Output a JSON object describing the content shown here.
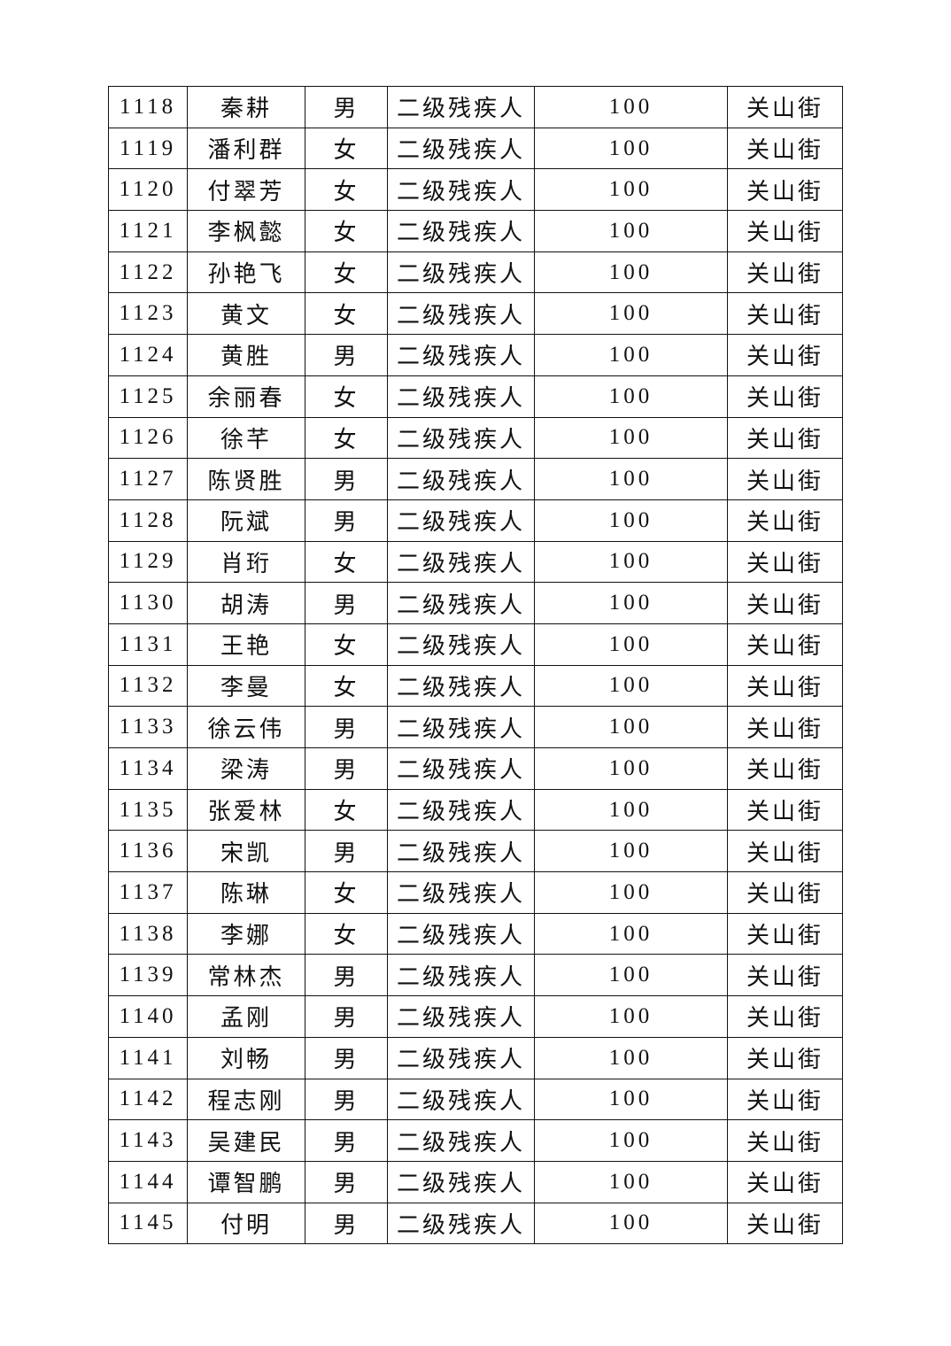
{
  "table": {
    "rows": [
      [
        "1118",
        "秦耕",
        "男",
        "二级残疾人",
        "100",
        "关山街"
      ],
      [
        "1119",
        "潘利群",
        "女",
        "二级残疾人",
        "100",
        "关山街"
      ],
      [
        "1120",
        "付翠芳",
        "女",
        "二级残疾人",
        "100",
        "关山街"
      ],
      [
        "1121",
        "李枫懿",
        "女",
        "二级残疾人",
        "100",
        "关山街"
      ],
      [
        "1122",
        "孙艳飞",
        "女",
        "二级残疾人",
        "100",
        "关山街"
      ],
      [
        "1123",
        "黄文",
        "女",
        "二级残疾人",
        "100",
        "关山街"
      ],
      [
        "1124",
        "黄胜",
        "男",
        "二级残疾人",
        "100",
        "关山街"
      ],
      [
        "1125",
        "余丽春",
        "女",
        "二级残疾人",
        "100",
        "关山街"
      ],
      [
        "1126",
        "徐芊",
        "女",
        "二级残疾人",
        "100",
        "关山街"
      ],
      [
        "1127",
        "陈贤胜",
        "男",
        "二级残疾人",
        "100",
        "关山街"
      ],
      [
        "1128",
        "阮斌",
        "男",
        "二级残疾人",
        "100",
        "关山街"
      ],
      [
        "1129",
        "肖珩",
        "女",
        "二级残疾人",
        "100",
        "关山街"
      ],
      [
        "1130",
        "胡涛",
        "男",
        "二级残疾人",
        "100",
        "关山街"
      ],
      [
        "1131",
        "王艳",
        "女",
        "二级残疾人",
        "100",
        "关山街"
      ],
      [
        "1132",
        "李曼",
        "女",
        "二级残疾人",
        "100",
        "关山街"
      ],
      [
        "1133",
        "徐云伟",
        "男",
        "二级残疾人",
        "100",
        "关山街"
      ],
      [
        "1134",
        "梁涛",
        "男",
        "二级残疾人",
        "100",
        "关山街"
      ],
      [
        "1135",
        "张爱林",
        "女",
        "二级残疾人",
        "100",
        "关山街"
      ],
      [
        "1136",
        "宋凯",
        "男",
        "二级残疾人",
        "100",
        "关山街"
      ],
      [
        "1137",
        "陈琳",
        "女",
        "二级残疾人",
        "100",
        "关山街"
      ],
      [
        "1138",
        "李娜",
        "女",
        "二级残疾人",
        "100",
        "关山街"
      ],
      [
        "1139",
        "常林杰",
        "男",
        "二级残疾人",
        "100",
        "关山街"
      ],
      [
        "1140",
        "孟刚",
        "男",
        "二级残疾人",
        "100",
        "关山街"
      ],
      [
        "1141",
        "刘畅",
        "男",
        "二级残疾人",
        "100",
        "关山街"
      ],
      [
        "1142",
        "程志刚",
        "男",
        "二级残疾人",
        "100",
        "关山街"
      ],
      [
        "1143",
        "吴建民",
        "男",
        "二级残疾人",
        "100",
        "关山街"
      ],
      [
        "1144",
        "谭智鹏",
        "男",
        "二级残疾人",
        "100",
        "关山街"
      ],
      [
        "1145",
        "付明",
        "男",
        "二级残疾人",
        "100",
        "关山街"
      ]
    ]
  }
}
